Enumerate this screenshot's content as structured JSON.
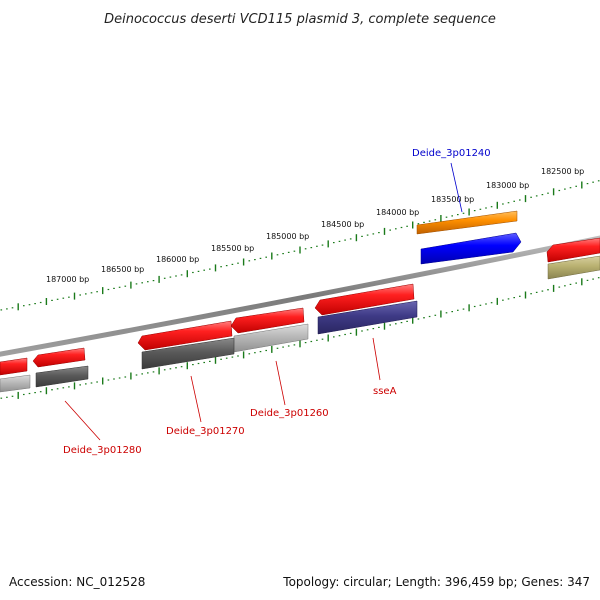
{
  "title": "Deinococcus deserti VCD115 plasmid 3, complete sequence",
  "footer": {
    "accession": "Accession: NC_012528",
    "stats": "Topology: circular; Length: 396,459 bp; Genes: 347"
  },
  "colors": {
    "backbone": "#808080",
    "tick": "#1a7a1a",
    "label_red": "#cc0000",
    "label_blue": "#0000cc",
    "gene_red": "#ee1111",
    "gene_orange": "#ff8800",
    "gene_blue": "#0000ee",
    "gene_dark": "#5a5a5a",
    "gene_light": "#b8b8b8",
    "gene_purple": "#3e3a86",
    "gene_olive": "#b8b070"
  },
  "tick_labels": [
    "182500 bp",
    "183000 bp",
    "183500 bp",
    "184000 bp",
    "184500 bp",
    "185000 bp",
    "185500 bp",
    "186000 bp",
    "186500 bp",
    "187000 bp"
  ],
  "gene_labels": [
    {
      "text": "Deide_3p01240",
      "color": "blue"
    },
    {
      "text": "sseA",
      "color": "red"
    },
    {
      "text": "Deide_3p01260",
      "color": "red"
    },
    {
      "text": "Deide_3p01270",
      "color": "red"
    },
    {
      "text": "Deide_3p01280",
      "color": "red"
    }
  ]
}
